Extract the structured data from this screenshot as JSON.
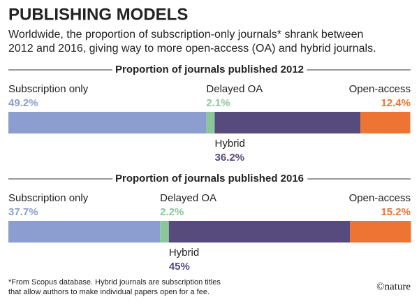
{
  "title": "PUBLISHING MODELS",
  "subtitle": [
    "Worldwide, the proportion of subscription-only journals* shrank between",
    "2012 and 2016, giving way to more open-access (OA) and hybrid journals."
  ],
  "chart_data": [
    {
      "type": "stacked-bar",
      "title": "Proportion of journals published 2012",
      "xlim": [
        0,
        100
      ],
      "series": [
        {
          "name": "Subscription only",
          "color": "#8c9ecf",
          "values": [
            49.2
          ],
          "value_labels": [
            "49.2%"
          ]
        },
        {
          "name": "Delayed OA",
          "color": "#8cc79b",
          "values": [
            2.1
          ],
          "value_labels": [
            "2.1%"
          ]
        },
        {
          "name": "Hybrid",
          "color": "#574b7e",
          "values": [
            36.2
          ],
          "value_labels": [
            "36.2%"
          ]
        },
        {
          "name": "Open-access",
          "color": "#ee7434",
          "values": [
            12.4
          ],
          "value_labels": [
            "12.4%"
          ]
        }
      ]
    },
    {
      "type": "stacked-bar",
      "title": "Proportion of journals published 2016",
      "xlim": [
        0,
        100
      ],
      "series": [
        {
          "name": "Subscription only",
          "color": "#8c9ecf",
          "values": [
            37.7
          ],
          "value_labels": [
            "37.7%"
          ]
        },
        {
          "name": "Delayed OA",
          "color": "#8cc79b",
          "values": [
            2.2
          ],
          "value_labels": [
            "2.2%"
          ]
        },
        {
          "name": "Hybrid",
          "color": "#574b7e",
          "values": [
            45
          ],
          "value_labels": [
            "45%"
          ]
        },
        {
          "name": "Open-access",
          "color": "#ee7434",
          "values": [
            15.2
          ],
          "value_labels": [
            "15.2%"
          ]
        }
      ]
    }
  ],
  "footnote": [
    "*From Scopus database. Hybrid journals are subscription titles",
    "that allow authors to make individual papers open for a fee."
  ],
  "credit": "©nature"
}
